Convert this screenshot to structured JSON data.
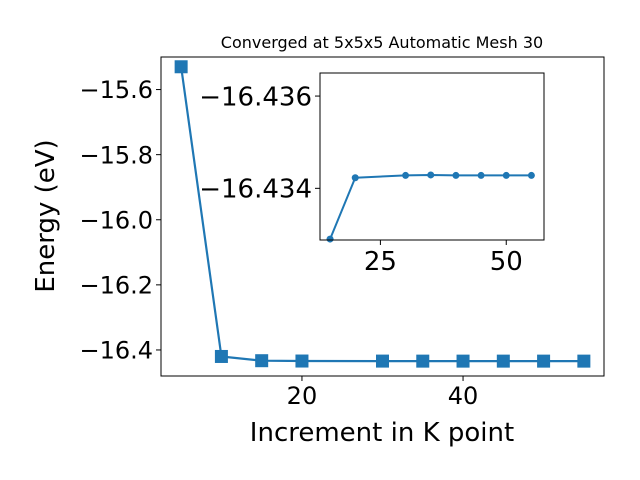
{
  "chart_data": [
    {
      "type": "line",
      "title": "Converged at 5x5x5 Automatic Mesh 30",
      "xlabel": "Increment in K point",
      "ylabel": "Energy (eV)",
      "x": [
        5,
        10,
        15,
        20,
        30,
        35,
        40,
        45,
        50,
        55
      ],
      "series": [
        {
          "values": [
            -15.53,
            -16.42,
            -16.433,
            -16.434,
            -16.4342,
            -16.4343,
            -16.4343,
            -16.4343,
            -16.4343,
            -16.4343
          ]
        }
      ],
      "xlim": [
        2.5,
        57.5
      ],
      "ylim": [
        -16.48,
        -15.5
      ],
      "xticks": [
        20,
        40
      ],
      "yticks": [
        -15.6,
        -15.8,
        -16.0,
        -16.2,
        -16.4
      ],
      "ytick_labels": [
        "−15.6",
        "−15.8",
        "−16.0",
        "−16.2",
        "−16.4"
      ],
      "marker": "square",
      "color": "#1f77b4",
      "grid": false
    },
    {
      "type": "line",
      "x": [
        15,
        20,
        30,
        35,
        40,
        45,
        50,
        55
      ],
      "series": [
        {
          "values": [
            -16.4329,
            -16.43423,
            -16.43428,
            -16.43429,
            -16.43428,
            -16.43428,
            -16.43428,
            -16.43428
          ]
        }
      ],
      "xlim": [
        13,
        57.5
      ],
      "ylim": [
        -16.43288,
        -16.4365
      ],
      "xticks": [
        25,
        50
      ],
      "yticks": [
        -16.436,
        -16.434
      ],
      "ytick_labels": [
        "−16.436",
        "−16.434"
      ],
      "marker": "circle",
      "color": "#1f77b4",
      "grid": false
    }
  ]
}
